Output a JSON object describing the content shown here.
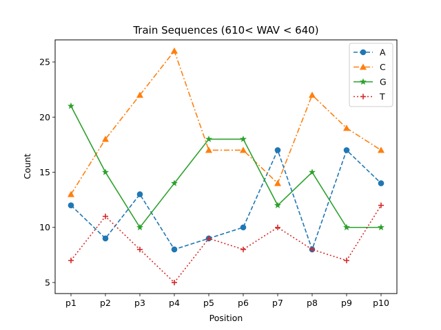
{
  "chart_data": {
    "type": "line",
    "title": "Train Sequences (610< WAV < 640)",
    "xlabel": "Position",
    "ylabel": "Count",
    "categories": [
      "p1",
      "p2",
      "p3",
      "p4",
      "p5",
      "p6",
      "p7",
      "p8",
      "p9",
      "p10"
    ],
    "ylim": [
      4,
      27
    ],
    "yticks": [
      5,
      10,
      15,
      20,
      25
    ],
    "grid": false,
    "legend_position": "top-right",
    "series": [
      {
        "name": "A",
        "color": "#1f77b4",
        "linestyle": "dashed",
        "marker": "circle",
        "values": [
          12,
          9,
          13,
          8,
          9,
          10,
          17,
          8,
          17,
          14
        ]
      },
      {
        "name": "C",
        "color": "#ff7f0e",
        "linestyle": "dashdot",
        "marker": "triangle",
        "values": [
          13,
          18,
          22,
          26,
          17,
          17,
          14,
          22,
          19,
          17
        ]
      },
      {
        "name": "G",
        "color": "#2ca02c",
        "linestyle": "solid",
        "marker": "star",
        "values": [
          21,
          15,
          10,
          14,
          18,
          18,
          12,
          15,
          10,
          10
        ]
      },
      {
        "name": "T",
        "color": "#d62728",
        "linestyle": "dotted",
        "marker": "plus",
        "values": [
          7,
          11,
          8,
          5,
          9,
          8,
          10,
          8,
          7,
          12
        ]
      }
    ]
  }
}
